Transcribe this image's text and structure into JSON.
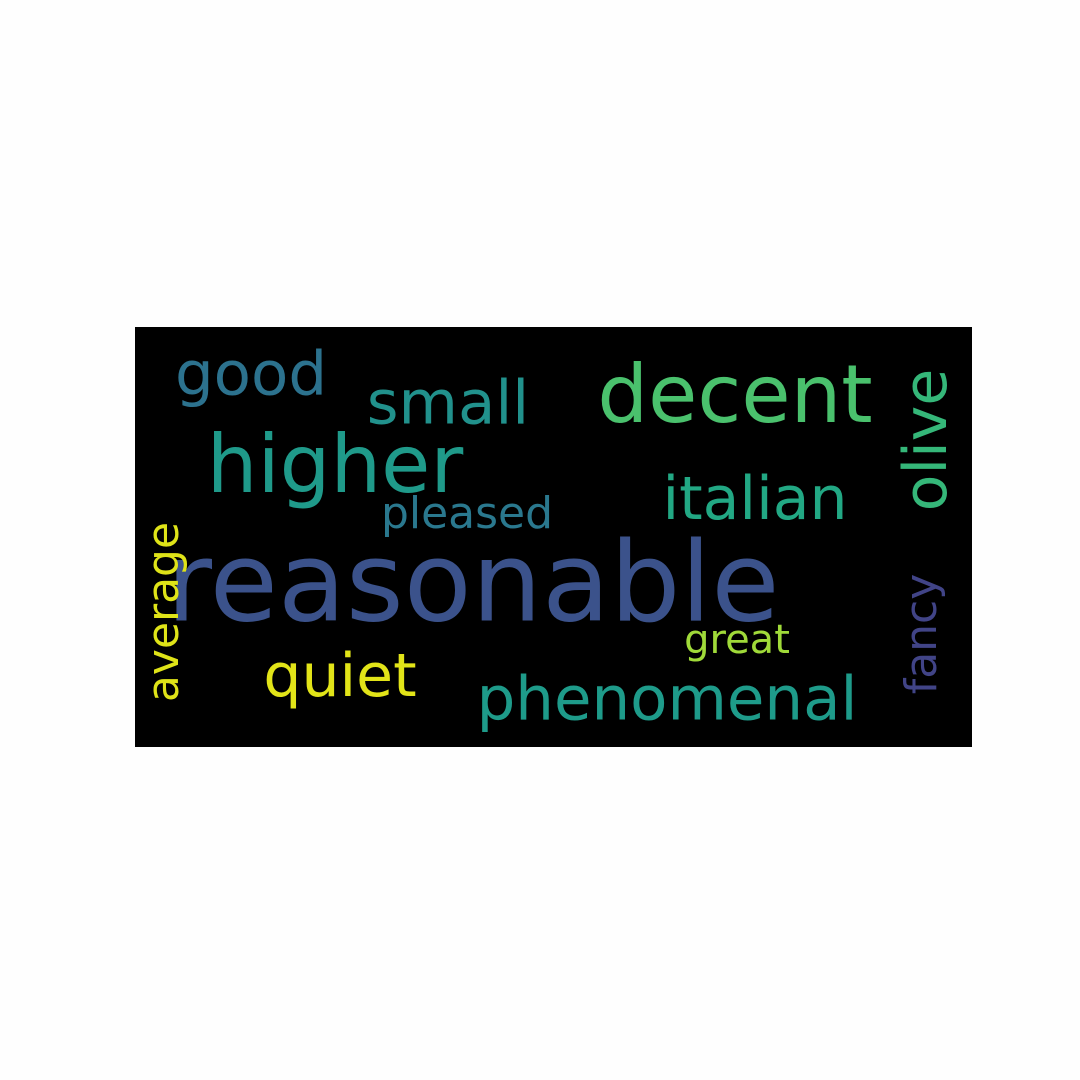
{
  "words": [
    {
      "text": "reasonable",
      "color": "#3b528b",
      "orientation": "horizontal"
    },
    {
      "text": "higher",
      "color": "#1f9a8a",
      "orientation": "horizontal"
    },
    {
      "text": "decent",
      "color": "#4ac16d",
      "orientation": "horizontal"
    },
    {
      "text": "italian",
      "color": "#22a884",
      "orientation": "horizontal"
    },
    {
      "text": "phenomenal",
      "color": "#1e9b8a",
      "orientation": "horizontal"
    },
    {
      "text": "small",
      "color": "#21918c",
      "orientation": "horizontal"
    },
    {
      "text": "good",
      "color": "#2c728e",
      "orientation": "horizontal"
    },
    {
      "text": "olive",
      "color": "#35b779",
      "orientation": "vertical"
    },
    {
      "text": "quiet",
      "color": "#e2e418",
      "orientation": "horizontal"
    },
    {
      "text": "average",
      "color": "#dfe318",
      "orientation": "vertical"
    },
    {
      "text": "pleased",
      "color": "#2a788e",
      "orientation": "horizontal"
    },
    {
      "text": "fancy",
      "color": "#414487",
      "orientation": "vertical"
    },
    {
      "text": "great",
      "color": "#a0da39",
      "orientation": "horizontal"
    }
  ]
}
